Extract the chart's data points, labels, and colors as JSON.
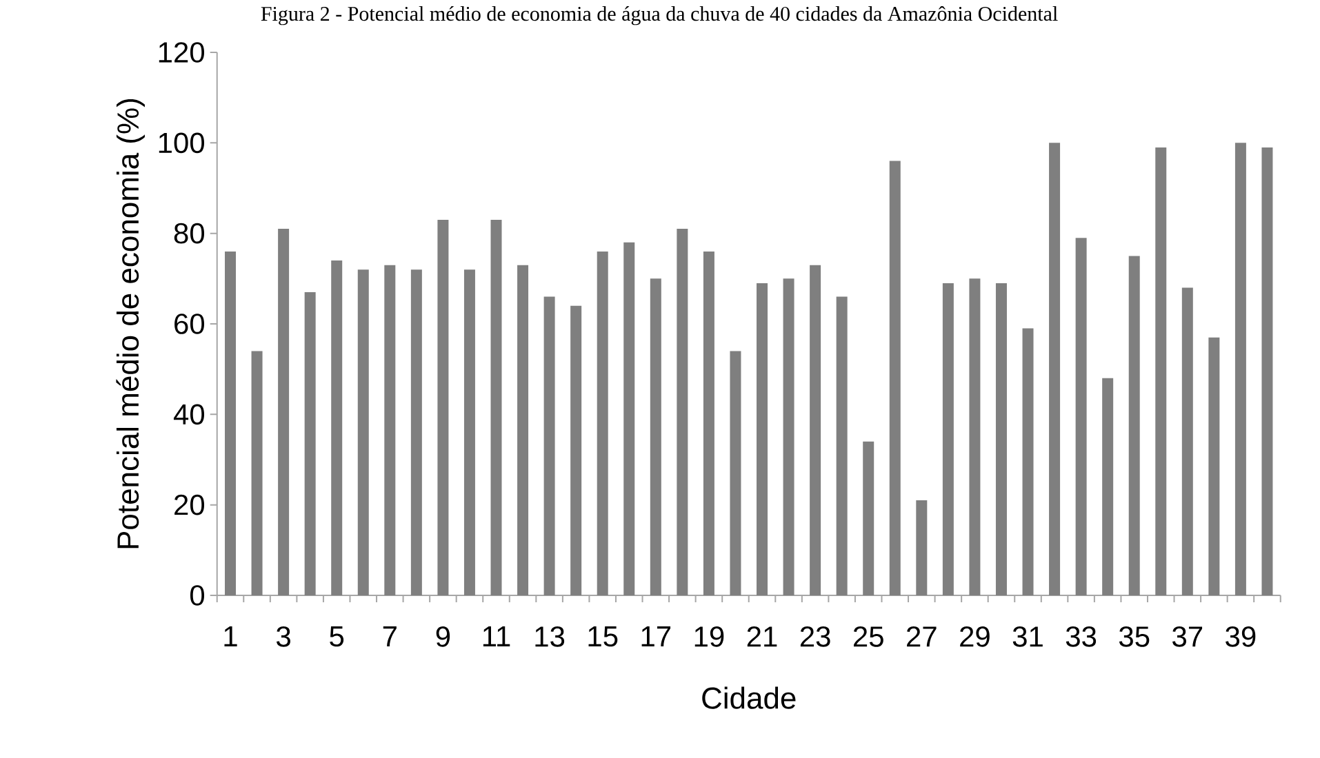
{
  "chart_data": {
    "type": "bar",
    "title": "Figura 2 - Potencial médio de economia de água da chuva de 40 cidades da Amazônia Ocidental",
    "xlabel": "Cidade",
    "ylabel": "Potencial médio de economia (%)",
    "categories": [
      "1",
      null,
      "3",
      null,
      "5",
      null,
      "7",
      null,
      "9",
      null,
      "11",
      null,
      "13",
      null,
      "15",
      null,
      "17",
      null,
      "19",
      null,
      "21",
      null,
      "23",
      null,
      "25",
      null,
      "27",
      null,
      "29",
      null,
      "31",
      null,
      "33",
      null,
      "35",
      null,
      "37",
      null,
      "39",
      null
    ],
    "values": [
      76,
      54,
      81,
      67,
      74,
      72,
      73,
      72,
      83,
      72,
      83,
      73,
      66,
      64,
      76,
      78,
      70,
      81,
      76,
      54,
      69,
      70,
      73,
      66,
      34,
      96,
      21,
      69,
      70,
      69,
      59,
      100,
      79,
      48,
      75,
      99,
      68,
      57,
      100,
      99
    ],
    "color": "#7f7f7f",
    "ylim": [
      0,
      120
    ],
    "yticks": [
      0,
      20,
      40,
      60,
      80,
      100,
      120
    ]
  }
}
